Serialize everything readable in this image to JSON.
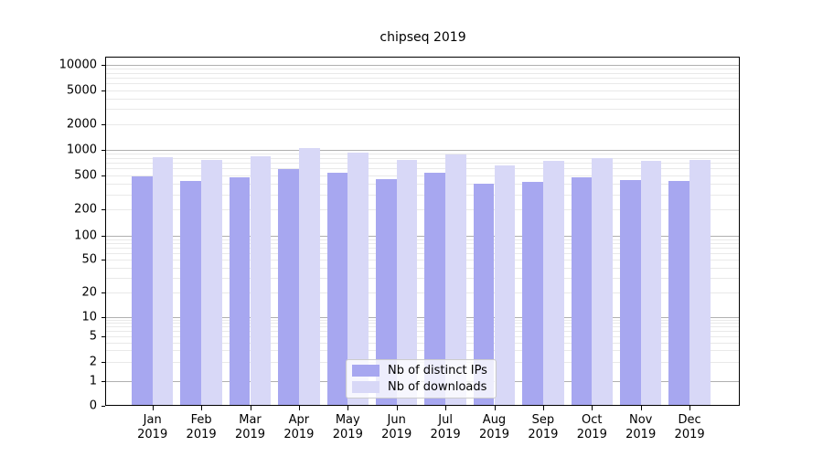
{
  "title": "chipseq 2019",
  "legend": {
    "items": [
      {
        "label": "Nb of distinct IPs",
        "color": "#a7a7f0"
      },
      {
        "label": "Nb of downloads",
        "color": "#d8d8f7"
      }
    ]
  },
  "y_axis": {
    "tick_labels": [
      "0",
      "1",
      "2",
      "5",
      "10",
      "20",
      "50",
      "100",
      "200",
      "500",
      "1000",
      "2000",
      "5000",
      "10000"
    ]
  },
  "x_axis": {
    "months": [
      "Jan",
      "Feb",
      "Mar",
      "Apr",
      "May",
      "Jun",
      "Jul",
      "Aug",
      "Sep",
      "Oct",
      "Nov",
      "Dec"
    ],
    "year": "2019"
  },
  "colors": {
    "ips": "#a7a7f0",
    "downloads": "#d8d8f7",
    "grid_major": "#b0b0b0",
    "grid_minor": "#e9e9e9",
    "axis": "#000000",
    "legend_border": "#cccccc"
  },
  "chart_data": {
    "type": "bar",
    "title": "chipseq 2019",
    "categories": [
      "Jan 2019",
      "Feb 2019",
      "Mar 2019",
      "Apr 2019",
      "May 2019",
      "Jun 2019",
      "Jul 2019",
      "Aug 2019",
      "Sep 2019",
      "Oct 2019",
      "Nov 2019",
      "Dec 2019"
    ],
    "series": [
      {
        "name": "Nb of distinct IPs",
        "color": "#a7a7f0",
        "values": [
          490,
          430,
          480,
          590,
          540,
          455,
          530,
          395,
          420,
          470,
          440,
          430
        ]
      },
      {
        "name": "Nb of downloads",
        "color": "#d8d8f7",
        "values": [
          810,
          750,
          840,
          1050,
          930,
          760,
          870,
          650,
          730,
          800,
          730,
          760
        ]
      }
    ],
    "xlabel": "",
    "ylabel": "",
    "yscale": "symlog",
    "y_ticks": [
      0,
      1,
      2,
      5,
      10,
      20,
      50,
      100,
      200,
      500,
      1000,
      2000,
      5000,
      10000
    ],
    "ylim": [
      0,
      12000
    ],
    "grid": true,
    "legend_position": "lower center"
  }
}
